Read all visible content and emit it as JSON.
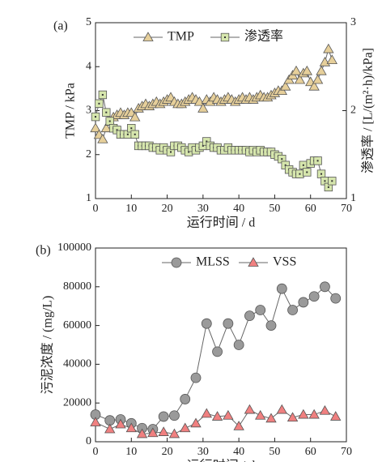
{
  "chart_data": [
    {
      "type": "line",
      "title": "(a)",
      "x_label": "运行时间 / d",
      "y_label": "TMP / kPa",
      "y2_label": "渗透率 / [L/(m²·h)/kPa]",
      "x": [
        0,
        1,
        2,
        3,
        4,
        5,
        6,
        7,
        8,
        9,
        10,
        11,
        12,
        13,
        14,
        15,
        16,
        17,
        18,
        19,
        20,
        21,
        22,
        23,
        24,
        25,
        26,
        27,
        28,
        29,
        30,
        31,
        32,
        33,
        34,
        35,
        36,
        37,
        38,
        39,
        40,
        41,
        42,
        43,
        44,
        45,
        46,
        47,
        48,
        49,
        50,
        51,
        52,
        53,
        54,
        55,
        56,
        57,
        58,
        59,
        60,
        61,
        62,
        63,
        64,
        65,
        66
      ],
      "xlim": [
        0,
        70
      ],
      "xticks": [
        0,
        10,
        20,
        30,
        40,
        50,
        60,
        70
      ],
      "ylim": [
        1,
        5
      ],
      "yticks": [
        1,
        2,
        3,
        4,
        5
      ],
      "y2lim": [
        1,
        3
      ],
      "y2ticks": [
        1,
        2,
        3
      ],
      "legend": "upper center",
      "series": [
        {
          "name": "TMP",
          "color": "#e6cf9a",
          "marker": "triangle",
          "values": [
            2.6,
            2.45,
            2.35,
            2.6,
            2.75,
            2.85,
            2.9,
            2.95,
            2.9,
            2.95,
            2.95,
            2.85,
            3.05,
            3.1,
            3.15,
            3.1,
            3.15,
            3.2,
            3.15,
            3.2,
            3.25,
            3.3,
            3.2,
            3.15,
            3.15,
            3.2,
            3.25,
            3.3,
            3.25,
            3.2,
            3.05,
            3.25,
            3.2,
            3.3,
            3.25,
            3.2,
            3.25,
            3.3,
            3.25,
            3.2,
            3.25,
            3.3,
            3.25,
            3.3,
            3.25,
            3.3,
            3.35,
            3.3,
            3.3,
            3.35,
            3.4,
            3.45,
            3.45,
            3.55,
            3.7,
            3.8,
            3.9,
            3.7,
            3.85,
            3.9,
            3.65,
            3.55,
            3.7,
            3.9,
            4.1,
            4.4,
            4.15
          ]
        },
        {
          "name": "渗透率",
          "color": "#d6e6ad",
          "marker": "square",
          "axis": "y2",
          "values": [
            1.93,
            2.08,
            2.18,
            1.98,
            1.88,
            1.8,
            1.78,
            1.73,
            1.73,
            1.73,
            1.8,
            1.73,
            1.6,
            1.6,
            1.6,
            1.6,
            1.58,
            1.58,
            1.55,
            1.58,
            1.55,
            1.53,
            1.6,
            1.6,
            1.58,
            1.55,
            1.53,
            1.58,
            1.55,
            1.58,
            1.6,
            1.65,
            1.6,
            1.58,
            1.58,
            1.55,
            1.55,
            1.58,
            1.55,
            1.55,
            1.55,
            1.55,
            1.55,
            1.53,
            1.55,
            1.53,
            1.55,
            1.53,
            1.53,
            1.53,
            1.5,
            1.48,
            1.45,
            1.38,
            1.33,
            1.3,
            1.28,
            1.28,
            1.38,
            1.3,
            1.4,
            1.43,
            1.43,
            1.28,
            1.2,
            1.13,
            1.2
          ]
        }
      ]
    },
    {
      "type": "line",
      "title": "(b)",
      "x_label": "运行时间 / d",
      "y_label": "污泥浓度 / (mg/L)",
      "x": [
        0,
        4,
        7,
        10,
        13,
        16,
        19,
        22,
        25,
        28,
        31,
        34,
        37,
        40,
        43,
        46,
        49,
        52,
        55,
        58,
        61,
        64,
        67
      ],
      "xlim": [
        0,
        70
      ],
      "xticks": [
        0,
        10,
        20,
        30,
        40,
        50,
        60,
        70
      ],
      "ylim": [
        0,
        100000
      ],
      "yticks": [
        0,
        20000,
        40000,
        60000,
        80000,
        100000
      ],
      "legend": "upper center",
      "series": [
        {
          "name": "MLSS",
          "color": "#9a9a9a",
          "marker": "circle",
          "values": [
            14000,
            11000,
            11500,
            9500,
            7000,
            6500,
            13000,
            13500,
            22000,
            33000,
            61000,
            46500,
            61000,
            50000,
            65000,
            68000,
            60000,
            79000,
            68000,
            72000,
            75000,
            80000,
            74000
          ]
        },
        {
          "name": "VSS",
          "color": "#f08080",
          "marker": "triangle",
          "values": [
            10000,
            6500,
            9000,
            7000,
            4000,
            4500,
            5000,
            4000,
            7000,
            9500,
            14500,
            13000,
            13500,
            8000,
            16500,
            13500,
            12000,
            16500,
            12500,
            14000,
            14000,
            16000,
            13000
          ]
        }
      ]
    }
  ]
}
